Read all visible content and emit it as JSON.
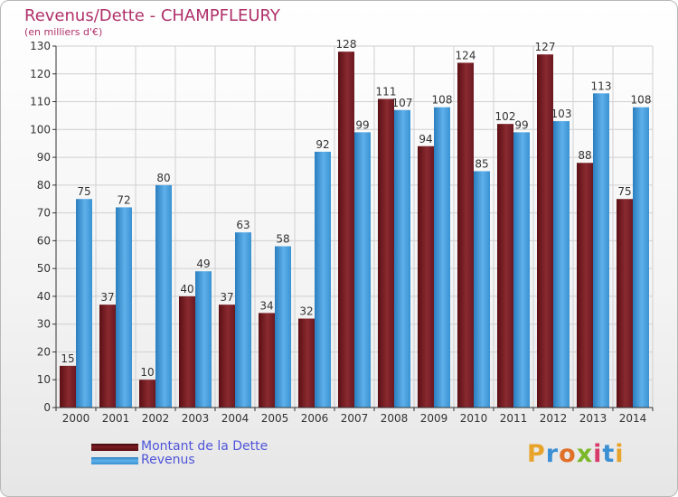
{
  "chart_data": {
    "type": "bar",
    "title": "Revenus/Dette - CHAMPFLEURY",
    "subtitle": "(en milliers d'€)",
    "categories": [
      "2000",
      "2001",
      "2002",
      "2003",
      "2004",
      "2005",
      "2006",
      "2007",
      "2008",
      "2009",
      "2010",
      "2011",
      "2012",
      "2013",
      "2014"
    ],
    "series": [
      {
        "name": "Montant de la Dette",
        "color": "#7b1c22",
        "values": [
          15,
          37,
          10,
          40,
          37,
          34,
          32,
          128,
          111,
          94,
          124,
          102,
          127,
          88,
          75
        ]
      },
      {
        "name": "Revenus",
        "color": "#3d9ad8",
        "values": [
          75,
          72,
          80,
          49,
          63,
          58,
          92,
          99,
          107,
          108,
          85,
          99,
          103,
          113,
          108
        ]
      }
    ],
    "ylim": [
      0,
      130
    ],
    "yticks": [
      0,
      10,
      20,
      30,
      40,
      50,
      60,
      70,
      80,
      90,
      100,
      110,
      120,
      130
    ],
    "grid": true,
    "legend_position": "bottom-left"
  },
  "brand": {
    "logo_text": "Proxiti"
  }
}
